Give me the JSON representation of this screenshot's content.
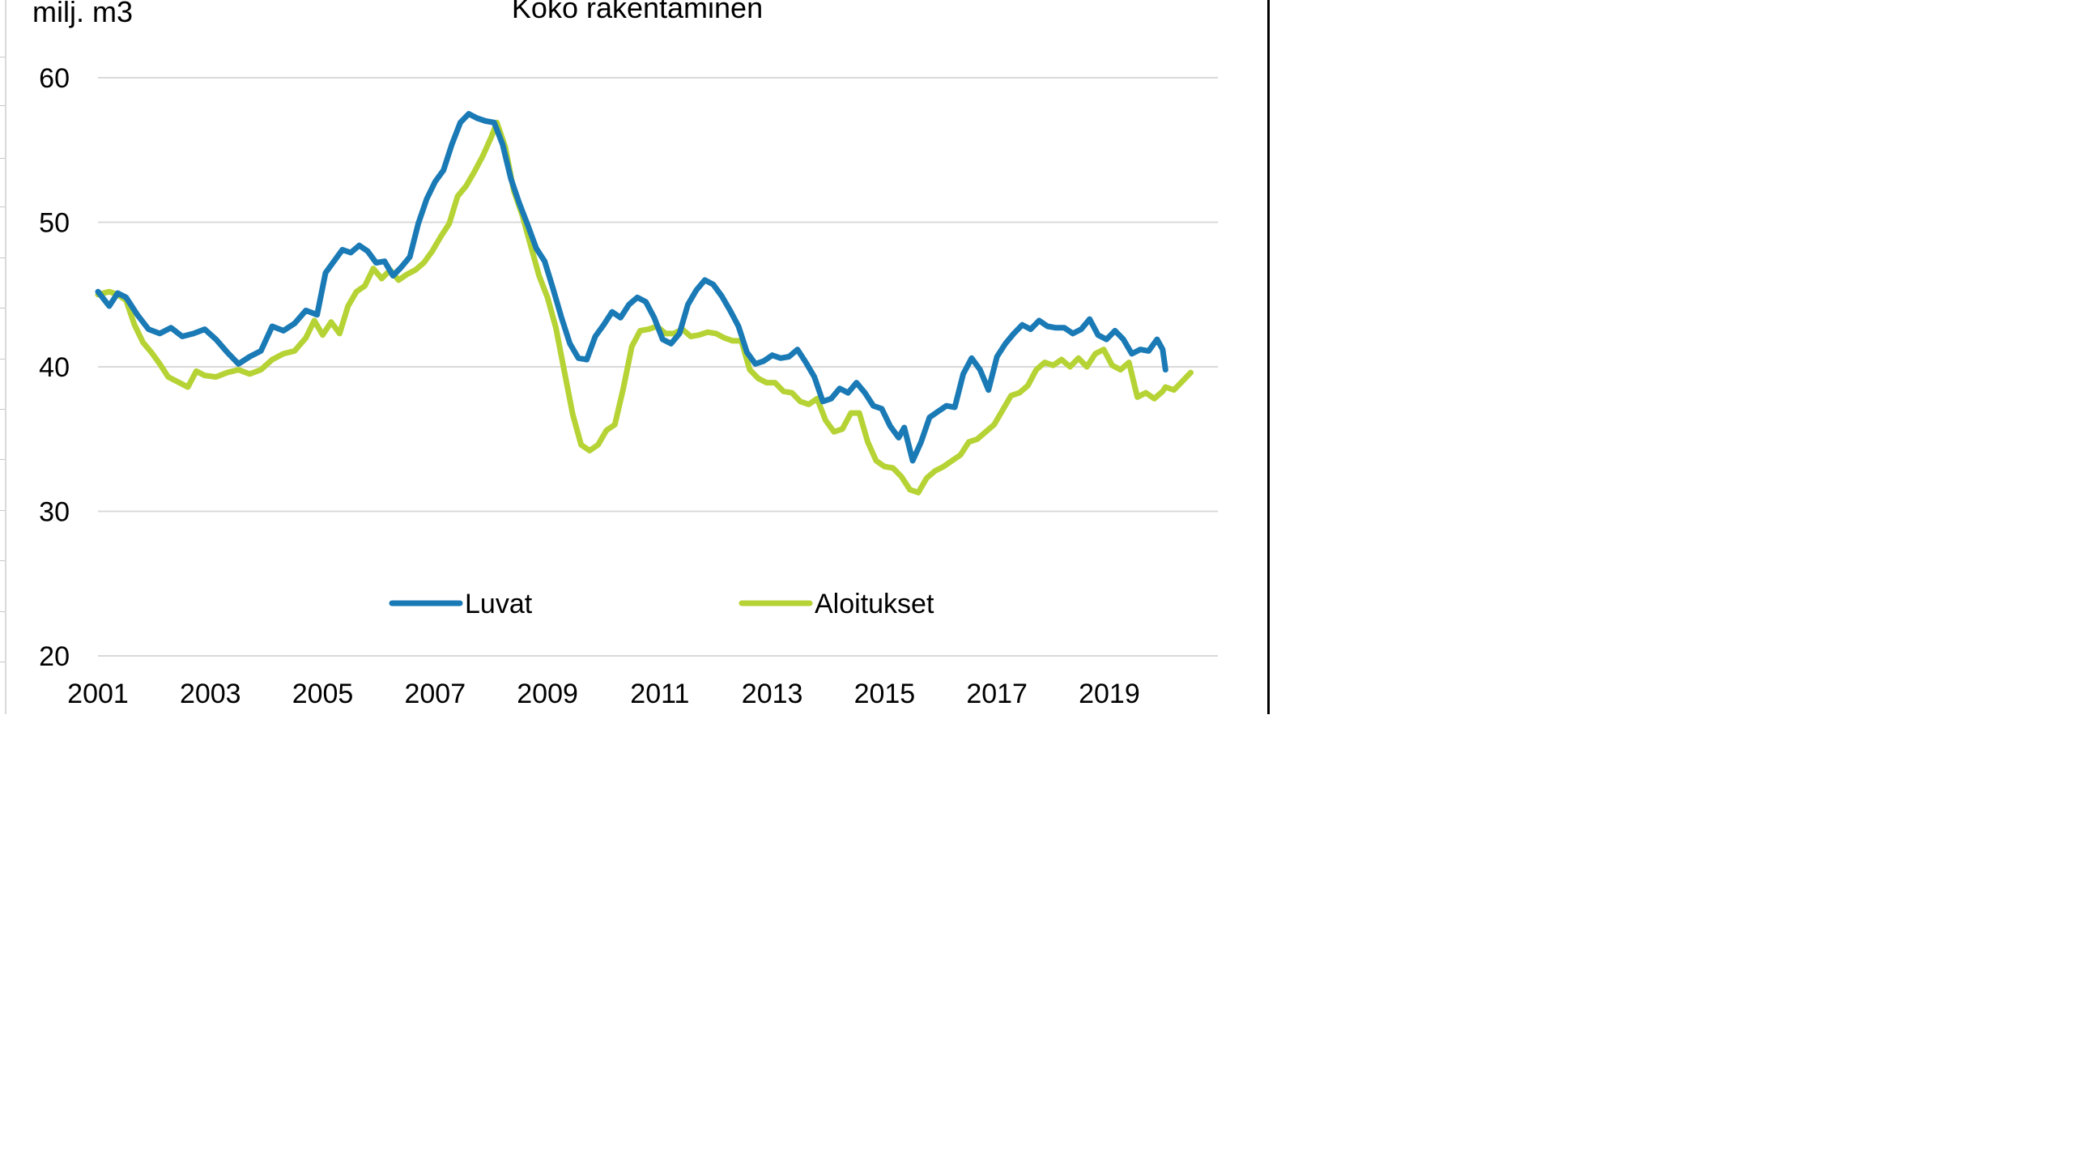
{
  "chart_data": {
    "type": "line",
    "title": "Koko rakentaminen",
    "ylabel": "milj. m3",
    "xlabel": "",
    "ylim": [
      20,
      60
    ],
    "xlim": [
      2001,
      2020.5
    ],
    "y_ticks": [
      "20",
      "30",
      "40",
      "50",
      "60"
    ],
    "x_ticks": [
      "2001",
      "2003",
      "2005",
      "2007",
      "2009",
      "2011",
      "2013",
      "2015",
      "2017",
      "2019"
    ],
    "grid": true,
    "legend": "bottom-center",
    "series": [
      {
        "name": "Luvat",
        "color": "#1a7ab5",
        "points": [
          [
            2001.0,
            45.2
          ],
          [
            2001.2,
            44.2
          ],
          [
            2001.35,
            45.1
          ],
          [
            2001.5,
            44.8
          ],
          [
            2001.7,
            43.6
          ],
          [
            2001.9,
            42.6
          ],
          [
            2002.1,
            42.3
          ],
          [
            2002.3,
            42.7
          ],
          [
            2002.5,
            42.1
          ],
          [
            2002.7,
            42.3
          ],
          [
            2002.9,
            42.6
          ],
          [
            2003.1,
            41.9
          ],
          [
            2003.3,
            41.0
          ],
          [
            2003.5,
            40.2
          ],
          [
            2003.7,
            40.7
          ],
          [
            2003.9,
            41.1
          ],
          [
            2004.1,
            42.8
          ],
          [
            2004.3,
            42.5
          ],
          [
            2004.5,
            43.0
          ],
          [
            2004.7,
            43.9
          ],
          [
            2004.9,
            43.6
          ],
          [
            2005.05,
            46.5
          ],
          [
            2005.2,
            47.3
          ],
          [
            2005.35,
            48.1
          ],
          [
            2005.5,
            47.9
          ],
          [
            2005.65,
            48.4
          ],
          [
            2005.8,
            48.0
          ],
          [
            2005.95,
            47.2
          ],
          [
            2006.1,
            47.3
          ],
          [
            2006.25,
            46.3
          ],
          [
            2006.4,
            46.9
          ],
          [
            2006.55,
            47.6
          ],
          [
            2006.7,
            49.9
          ],
          [
            2006.85,
            51.6
          ],
          [
            2007.0,
            52.8
          ],
          [
            2007.15,
            53.6
          ],
          [
            2007.3,
            55.4
          ],
          [
            2007.45,
            56.9
          ],
          [
            2007.6,
            57.5
          ],
          [
            2007.75,
            57.2
          ],
          [
            2007.9,
            57.0
          ],
          [
            2008.05,
            56.9
          ],
          [
            2008.2,
            55.4
          ],
          [
            2008.35,
            53.0
          ],
          [
            2008.5,
            51.3
          ],
          [
            2008.65,
            49.8
          ],
          [
            2008.8,
            48.2
          ],
          [
            2008.95,
            47.3
          ],
          [
            2009.1,
            45.4
          ],
          [
            2009.25,
            43.4
          ],
          [
            2009.4,
            41.6
          ],
          [
            2009.55,
            40.6
          ],
          [
            2009.7,
            40.5
          ],
          [
            2009.85,
            42.1
          ],
          [
            2010.0,
            42.9
          ],
          [
            2010.15,
            43.8
          ],
          [
            2010.3,
            43.4
          ],
          [
            2010.45,
            44.3
          ],
          [
            2010.6,
            44.8
          ],
          [
            2010.75,
            44.5
          ],
          [
            2010.9,
            43.4
          ],
          [
            2011.05,
            41.9
          ],
          [
            2011.2,
            41.6
          ],
          [
            2011.35,
            42.3
          ],
          [
            2011.5,
            44.3
          ],
          [
            2011.65,
            45.3
          ],
          [
            2011.8,
            46.0
          ],
          [
            2011.95,
            45.7
          ],
          [
            2012.1,
            44.9
          ],
          [
            2012.25,
            43.9
          ],
          [
            2012.4,
            42.8
          ],
          [
            2012.55,
            41.0
          ],
          [
            2012.7,
            40.2
          ],
          [
            2012.85,
            40.4
          ],
          [
            2013.0,
            40.8
          ],
          [
            2013.15,
            40.6
          ],
          [
            2013.3,
            40.7
          ],
          [
            2013.45,
            41.2
          ],
          [
            2013.6,
            40.3
          ],
          [
            2013.75,
            39.3
          ],
          [
            2013.9,
            37.6
          ],
          [
            2014.05,
            37.8
          ],
          [
            2014.2,
            38.5
          ],
          [
            2014.35,
            38.2
          ],
          [
            2014.5,
            38.9
          ],
          [
            2014.65,
            38.2
          ],
          [
            2014.8,
            37.3
          ],
          [
            2014.95,
            37.1
          ],
          [
            2015.1,
            35.9
          ],
          [
            2015.25,
            35.1
          ],
          [
            2015.35,
            35.8
          ],
          [
            2015.5,
            33.5
          ],
          [
            2015.65,
            34.8
          ],
          [
            2015.8,
            36.5
          ],
          [
            2015.95,
            36.9
          ],
          [
            2016.1,
            37.3
          ],
          [
            2016.25,
            37.2
          ],
          [
            2016.4,
            39.5
          ],
          [
            2016.55,
            40.6
          ],
          [
            2016.7,
            39.8
          ],
          [
            2016.85,
            38.4
          ],
          [
            2017.0,
            40.7
          ],
          [
            2017.15,
            41.6
          ],
          [
            2017.3,
            42.3
          ],
          [
            2017.45,
            42.9
          ],
          [
            2017.6,
            42.6
          ],
          [
            2017.75,
            43.2
          ],
          [
            2017.9,
            42.8
          ],
          [
            2018.05,
            42.7
          ],
          [
            2018.2,
            42.7
          ],
          [
            2018.35,
            42.3
          ],
          [
            2018.5,
            42.6
          ],
          [
            2018.65,
            43.3
          ],
          [
            2018.8,
            42.2
          ],
          [
            2018.95,
            41.9
          ],
          [
            2019.1,
            42.5
          ],
          [
            2019.25,
            41.9
          ],
          [
            2019.4,
            40.9
          ],
          [
            2019.55,
            41.2
          ],
          [
            2019.7,
            41.1
          ],
          [
            2019.85,
            41.9
          ],
          [
            2019.95,
            41.2
          ],
          [
            2020.0,
            39.8
          ]
        ]
      },
      {
        "name": "Aloitukset",
        "color": "#b5d334",
        "points": [
          [
            2001.0,
            45.0
          ],
          [
            2001.2,
            45.2
          ],
          [
            2001.35,
            45.0
          ],
          [
            2001.5,
            44.6
          ],
          [
            2001.65,
            42.9
          ],
          [
            2001.8,
            41.7
          ],
          [
            2001.95,
            41.0
          ],
          [
            2002.1,
            40.2
          ],
          [
            2002.25,
            39.3
          ],
          [
            2002.45,
            38.9
          ],
          [
            2002.6,
            38.6
          ],
          [
            2002.75,
            39.7
          ],
          [
            2002.9,
            39.4
          ],
          [
            2003.1,
            39.3
          ],
          [
            2003.3,
            39.6
          ],
          [
            2003.5,
            39.8
          ],
          [
            2003.7,
            39.5
          ],
          [
            2003.9,
            39.8
          ],
          [
            2004.1,
            40.5
          ],
          [
            2004.3,
            40.9
          ],
          [
            2004.5,
            41.1
          ],
          [
            2004.7,
            42.0
          ],
          [
            2004.85,
            43.2
          ],
          [
            2005.0,
            42.2
          ],
          [
            2005.15,
            43.1
          ],
          [
            2005.3,
            42.3
          ],
          [
            2005.45,
            44.2
          ],
          [
            2005.6,
            45.2
          ],
          [
            2005.75,
            45.6
          ],
          [
            2005.9,
            46.8
          ],
          [
            2006.05,
            46.1
          ],
          [
            2006.2,
            46.7
          ],
          [
            2006.35,
            46.0
          ],
          [
            2006.5,
            46.4
          ],
          [
            2006.65,
            46.7
          ],
          [
            2006.8,
            47.2
          ],
          [
            2006.95,
            48.0
          ],
          [
            2007.1,
            49.0
          ],
          [
            2007.25,
            49.9
          ],
          [
            2007.4,
            51.8
          ],
          [
            2007.55,
            52.5
          ],
          [
            2007.7,
            53.5
          ],
          [
            2007.85,
            54.6
          ],
          [
            2008.0,
            55.9
          ],
          [
            2008.1,
            56.9
          ],
          [
            2008.25,
            55.2
          ],
          [
            2008.4,
            52.2
          ],
          [
            2008.55,
            50.5
          ],
          [
            2008.7,
            48.4
          ],
          [
            2008.85,
            46.3
          ],
          [
            2009.0,
            44.8
          ],
          [
            2009.15,
            42.7
          ],
          [
            2009.3,
            39.7
          ],
          [
            2009.45,
            36.7
          ],
          [
            2009.6,
            34.6
          ],
          [
            2009.75,
            34.2
          ],
          [
            2009.9,
            34.6
          ],
          [
            2010.05,
            35.6
          ],
          [
            2010.2,
            36.0
          ],
          [
            2010.35,
            38.5
          ],
          [
            2010.5,
            41.4
          ],
          [
            2010.65,
            42.5
          ],
          [
            2010.8,
            42.6
          ],
          [
            2010.95,
            42.8
          ],
          [
            2011.1,
            42.3
          ],
          [
            2011.25,
            42.3
          ],
          [
            2011.4,
            42.6
          ],
          [
            2011.55,
            42.1
          ],
          [
            2011.7,
            42.2
          ],
          [
            2011.85,
            42.4
          ],
          [
            2012.0,
            42.3
          ],
          [
            2012.15,
            42.0
          ],
          [
            2012.3,
            41.8
          ],
          [
            2012.45,
            41.8
          ],
          [
            2012.6,
            39.8
          ],
          [
            2012.75,
            39.2
          ],
          [
            2012.9,
            38.9
          ],
          [
            2013.05,
            38.9
          ],
          [
            2013.2,
            38.3
          ],
          [
            2013.35,
            38.2
          ],
          [
            2013.5,
            37.6
          ],
          [
            2013.65,
            37.4
          ],
          [
            2013.8,
            37.8
          ],
          [
            2013.95,
            36.3
          ],
          [
            2014.1,
            35.5
          ],
          [
            2014.25,
            35.7
          ],
          [
            2014.4,
            36.8
          ],
          [
            2014.55,
            36.8
          ],
          [
            2014.7,
            34.8
          ],
          [
            2014.85,
            33.5
          ],
          [
            2015.0,
            33.1
          ],
          [
            2015.15,
            33.0
          ],
          [
            2015.3,
            32.4
          ],
          [
            2015.45,
            31.5
          ],
          [
            2015.6,
            31.3
          ],
          [
            2015.75,
            32.3
          ],
          [
            2015.9,
            32.8
          ],
          [
            2016.05,
            33.1
          ],
          [
            2016.2,
            33.5
          ],
          [
            2016.35,
            33.9
          ],
          [
            2016.5,
            34.8
          ],
          [
            2016.65,
            35.0
          ],
          [
            2016.8,
            35.5
          ],
          [
            2016.95,
            36.0
          ],
          [
            2017.1,
            37.0
          ],
          [
            2017.25,
            38.0
          ],
          [
            2017.4,
            38.2
          ],
          [
            2017.55,
            38.7
          ],
          [
            2017.7,
            39.8
          ],
          [
            2017.85,
            40.3
          ],
          [
            2018.0,
            40.1
          ],
          [
            2018.15,
            40.5
          ],
          [
            2018.3,
            40.0
          ],
          [
            2018.45,
            40.6
          ],
          [
            2018.6,
            40.0
          ],
          [
            2018.75,
            40.9
          ],
          [
            2018.9,
            41.2
          ],
          [
            2019.05,
            40.1
          ],
          [
            2019.2,
            39.8
          ],
          [
            2019.35,
            40.3
          ],
          [
            2019.5,
            37.9
          ],
          [
            2019.65,
            38.2
          ],
          [
            2019.8,
            37.8
          ],
          [
            2019.95,
            38.3
          ],
          [
            2020.0,
            38.6
          ],
          [
            2020.15,
            38.4
          ],
          [
            2020.3,
            39.0
          ],
          [
            2020.45,
            39.6
          ]
        ]
      }
    ]
  }
}
